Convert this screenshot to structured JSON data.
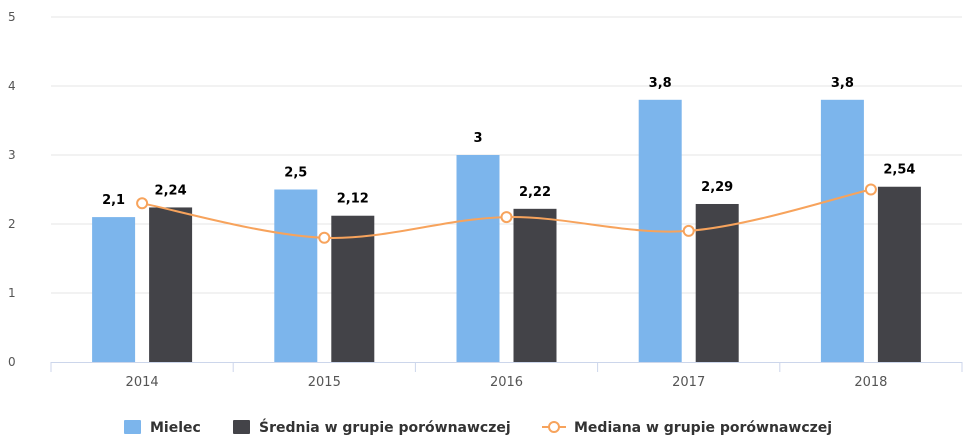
{
  "chart_data": {
    "type": "bar",
    "categories": [
      "2014",
      "2015",
      "2016",
      "2017",
      "2018"
    ],
    "ylim": [
      0,
      5
    ],
    "yticks": [
      "0",
      "1",
      "2",
      "3",
      "4",
      "5"
    ],
    "grid": true,
    "legend_position": "bottom-center",
    "series": [
      {
        "name": "Mielec",
        "type": "bar",
        "color": "#7cb5ec",
        "values": [
          2.1,
          2.5,
          3,
          3.8,
          3.8
        ],
        "labels": [
          "2,1",
          "2,5",
          "3",
          "3,8",
          "3,8"
        ]
      },
      {
        "name": "Średnia w grupie porównawczej",
        "type": "bar",
        "color": "#434348",
        "values": [
          2.24,
          2.12,
          2.22,
          2.29,
          2.54
        ],
        "labels": [
          "2,24",
          "2,12",
          "2,22",
          "2,29",
          "2,54"
        ]
      },
      {
        "name": "Mediana w grupie porównawczej",
        "type": "line",
        "color": "#f7a35c",
        "values": [
          2.3,
          1.8,
          2.1,
          1.9,
          2.5
        ]
      }
    ]
  }
}
